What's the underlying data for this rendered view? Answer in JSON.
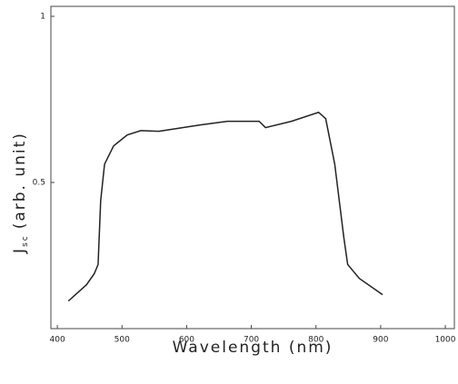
{
  "chart_data": {
    "type": "line",
    "x_label": "Wavelength    (nm)",
    "y_label": [
      "J",
      "sc",
      "(arb. unit)"
    ],
    "x": [
      417,
      445,
      457,
      463,
      467,
      473,
      487,
      508,
      529,
      557,
      621,
      663,
      712,
      722,
      762,
      804,
      815,
      829,
      843,
      849,
      867,
      903
    ],
    "series": [
      {
        "color": "#222222",
        "values": [
          0.143,
          0.192,
          0.225,
          0.253,
          0.445,
          0.555,
          0.61,
          0.643,
          0.656,
          0.654,
          0.673,
          0.684,
          0.684,
          0.665,
          0.684,
          0.711,
          0.692,
          0.555,
          0.335,
          0.253,
          0.211,
          0.162
        ]
      }
    ],
    "xlim": [
      390,
      1014
    ],
    "xticks": [
      400,
      500,
      600,
      700,
      800,
      900,
      1000
    ],
    "ylim": [
      0.06,
      1.03
    ],
    "yticks": [
      0.5,
      1
    ]
  }
}
